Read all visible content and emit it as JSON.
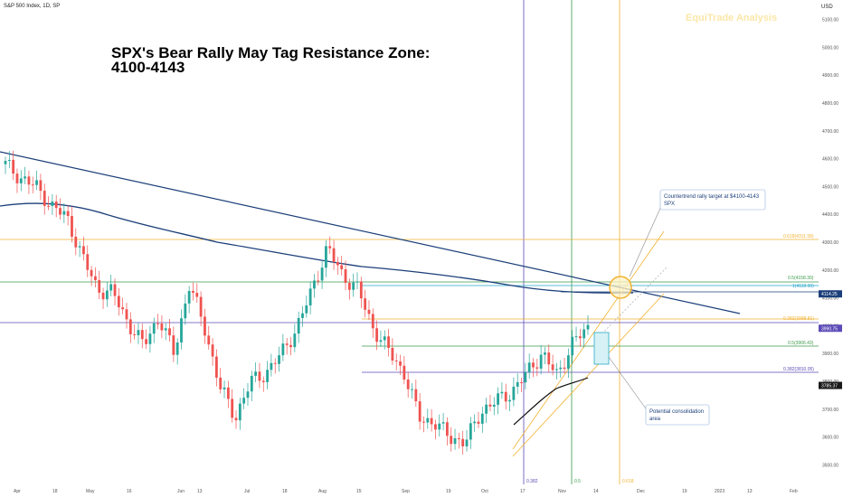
{
  "header": {
    "symbol_label": "S&P 500 Index, 1D, SP"
  },
  "title": {
    "line1": "SPX's Bear Rally May Tag Resistance Zone:",
    "line2": "4100-4143"
  },
  "watermark": "EquiTrade Analysis",
  "currency": "USD",
  "chart_data": {
    "type": "candlestick",
    "y_ticks": [
      3500,
      3600,
      3700,
      3800,
      3900,
      4000,
      4100,
      4200,
      4300,
      4400,
      4500,
      4600,
      4700,
      4800,
      4900,
      5000,
      5100
    ],
    "y_tick_labels": [
      "3500.00",
      "3600.00",
      "3700.00",
      "3800.00",
      "3900.00",
      "4000.00",
      "4100.00",
      "4200.00",
      "4300.00",
      "4400.00",
      "4500.00",
      "4600.00",
      "4700.00",
      "4800.00",
      "4900.00",
      "5000.00",
      "5100.00"
    ],
    "ylim": [
      3430,
      5170
    ],
    "x_ticks": [
      "Apr",
      "18",
      "May",
      "16",
      "Jun",
      "13",
      "Jul",
      "18",
      "Aug",
      "15",
      "Sep",
      "19",
      "Oct",
      "17",
      "Nov",
      "14",
      "Dec",
      "19",
      "2023",
      "13",
      "Feb"
    ],
    "close_sample": [
      4580,
      4530,
      4500,
      4430,
      4390,
      4250,
      4130,
      4120,
      4010,
      3930,
      4030,
      3900,
      4150,
      3990,
      3780,
      3670,
      3800,
      3830,
      3900,
      3990,
      4130,
      4280,
      4180,
      4130,
      3990,
      3910,
      3830,
      3670,
      3650,
      3600,
      3580,
      3690,
      3730,
      3760,
      3830,
      3900,
      3820,
      3940,
      3990
    ],
    "price_badges": [
      {
        "label": "4114.25",
        "value": 4114.25,
        "color": "#1c3f7a"
      },
      {
        "label": "3990.75",
        "value": 3990.75,
        "color": "#5b4bb7"
      },
      {
        "label": "3785.37",
        "value": 3785.37,
        "color": "#1a1a1a"
      }
    ],
    "fib_levels": [
      {
        "label": "0.618(4311.58)",
        "value": 4311.58,
        "color": "#f2b233"
      },
      {
        "label": "0.5(4158.30)",
        "value": 4158.3,
        "color": "#3b9a4a"
      },
      {
        "label": "1(4118.90)",
        "value": 4118.9,
        "color": "#29a9c9"
      },
      {
        "label": "0.382(3998.81)",
        "value": 3998.81,
        "color": "#f2b233"
      },
      {
        "label": "0.5(3906.43)",
        "value": 3906.43,
        "color": "#3b9a4a"
      },
      {
        "label": "0.382(3810.05)",
        "value": 3810.05,
        "color": "#5b4bb7"
      }
    ],
    "time_fib_labels": [
      "0.382",
      "0.5",
      "0.618"
    ],
    "annotations": [
      {
        "text": [
          "Countertrend rally target at $4100-4143",
          "SPX"
        ]
      },
      {
        "text": [
          "Potential consolidation",
          "area"
        ]
      }
    ]
  }
}
